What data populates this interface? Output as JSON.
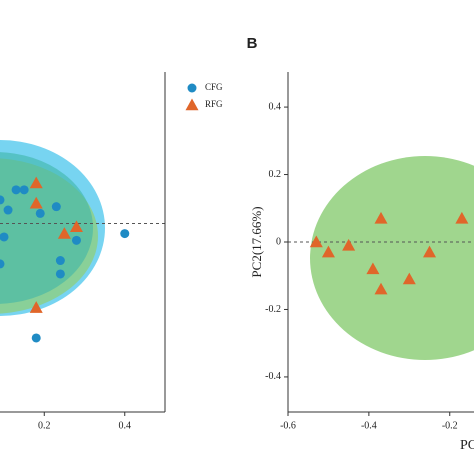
{
  "chart_data": [
    {
      "type": "scatter",
      "series": [
        {
          "name": "CFG",
          "color": "#1f8bc4",
          "marker": "circle",
          "x": [
            0.13,
            0.15,
            0.09,
            0.23,
            0.4,
            0.28,
            0.24,
            0.24,
            0.18,
            0.09,
            0.1,
            0.19,
            0.11
          ],
          "values": [
            0.1,
            0.1,
            0.07,
            0.05,
            -0.03,
            -0.05,
            -0.11,
            -0.15,
            -0.34,
            -0.12,
            -0.04,
            0.03,
            0.04
          ]
        },
        {
          "name": "RFG",
          "color": "#e0662a",
          "marker": "triangle",
          "x": [
            0.18,
            0.18,
            0.25,
            0.28,
            0.18
          ],
          "values": [
            0.12,
            0.06,
            -0.03,
            -0.01,
            -0.25
          ]
        }
      ],
      "xlim": [
        0.09,
        0.5
      ],
      "xticks": [
        0.2,
        0.4
      ],
      "ylim": [
        -0.56,
        0.45
      ],
      "legend": "upper right"
    },
    {
      "type": "scatter",
      "title": "B",
      "y_label": "PC2(17.66%)",
      "x_label": "PC",
      "series": [
        {
          "name": "RFG",
          "color": "#e0662a",
          "marker": "triangle",
          "x": [
            -0.53,
            -0.5,
            -0.45,
            -0.37,
            -0.39,
            -0.37,
            -0.3,
            -0.25,
            -0.17
          ],
          "values": [
            0,
            -0.03,
            -0.01,
            0.07,
            -0.08,
            -0.14,
            -0.11,
            -0.03,
            0.07
          ]
        }
      ],
      "xlim": [
        -0.6,
        -0.14
      ],
      "xticks": [
        -0.6,
        -0.4,
        -0.2
      ],
      "ylim": [
        -0.504,
        0.504
      ],
      "yticks": [
        0.4,
        0.2,
        0,
        -0.2,
        -0.4
      ]
    }
  ]
}
